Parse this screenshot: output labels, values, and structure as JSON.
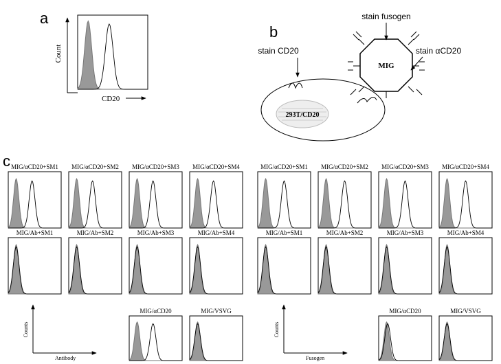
{
  "panel_a": {
    "label": "a",
    "y_axis": "Count",
    "x_axis": "CD20"
  },
  "panel_b": {
    "label": "b",
    "cell": "293T/CD20",
    "particle": "MIG",
    "stains": [
      "stain CD20",
      "stain fusogen",
      "stain αCD20"
    ]
  },
  "panel_c": {
    "label": "c",
    "groups": [
      {
        "plots": [
          "MIG/αCD20+SM1",
          "MIG/αCD20+SM2",
          "MIG/αCD20+SM3",
          "MIG/αCD20+SM4",
          "MIG/Ab+SM1",
          "MIG/Ab+SM2",
          "MIG/Ab+SM3",
          "MIG/Ab+SM4",
          "MIG/αCD20",
          "MIG/VSVG"
        ],
        "y_axis": "Counts",
        "x_axis": "Antibody"
      },
      {
        "plots": [
          "MIG/αCD20+SM1",
          "MIG/αCD20+SM2",
          "MIG/αCD20+SM3",
          "MIG/αCD20+SM4",
          "MIG/Ab+SM1",
          "MIG/Ab+SM2",
          "MIG/Ab+SM3",
          "MIG/Ab+SM4",
          "MIG/αCD20",
          "MIG/VSVG"
        ],
        "y_axis": "Counts",
        "x_axis": "Fusogen"
      }
    ]
  }
}
